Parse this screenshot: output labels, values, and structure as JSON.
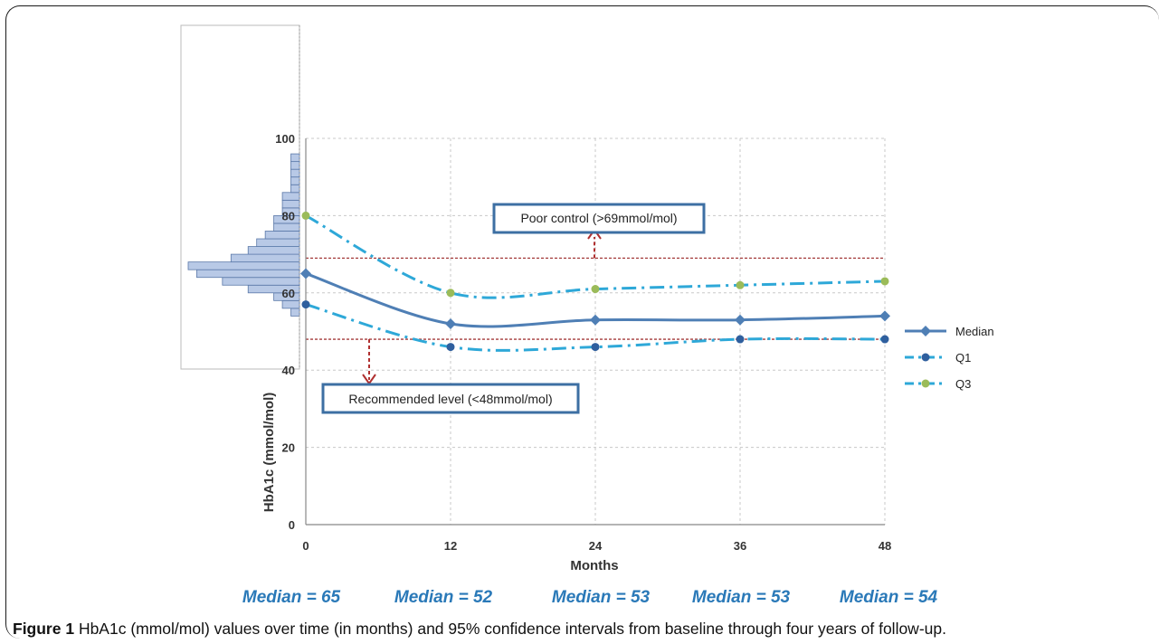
{
  "chart_data": {
    "type": "line",
    "xlabel": "Months",
    "ylabel": "HbA1c (mmol/mol)",
    "x": [
      0,
      12,
      24,
      36,
      48
    ],
    "xticks": [
      "0",
      "12",
      "24",
      "36",
      "48"
    ],
    "yticks": [
      "0",
      "20",
      "40",
      "60",
      "80",
      "100"
    ],
    "ylim": [
      0,
      100
    ],
    "xlim": [
      0,
      48
    ],
    "grid": true,
    "legend_position": "right",
    "series": [
      {
        "name": "Median",
        "values": [
          65,
          52,
          53,
          53,
          54
        ],
        "color": "#4f7fb5",
        "marker": "diamond",
        "style": "solid"
      },
      {
        "name": "Q1",
        "values": [
          57,
          46,
          46,
          48,
          48
        ],
        "color": "#2ea8d8",
        "marker_color": "#2f5f9e",
        "marker": "circle",
        "style": "dashdot"
      },
      {
        "name": "Q3",
        "values": [
          80,
          60,
          61,
          62,
          63
        ],
        "color": "#2ea8d8",
        "marker_color": "#9bbb59",
        "marker": "circle",
        "style": "dashdot"
      }
    ],
    "reference_lines": [
      {
        "value": 69,
        "label": "Poor control (>69mmol/mol)",
        "color": "#a33a3a"
      },
      {
        "value": 48,
        "label": "Recommended level (<48mmol/mol)",
        "color": "#a33a3a"
      }
    ],
    "histogram": {
      "orientation": "horizontal",
      "bin_width": 2,
      "bins": [
        {
          "y0": 54,
          "count": 1
        },
        {
          "y0": 56,
          "count": 2
        },
        {
          "y0": 58,
          "count": 3
        },
        {
          "y0": 60,
          "count": 6
        },
        {
          "y0": 62,
          "count": 9
        },
        {
          "y0": 64,
          "count": 12
        },
        {
          "y0": 66,
          "count": 13
        },
        {
          "y0": 68,
          "count": 8
        },
        {
          "y0": 70,
          "count": 6
        },
        {
          "y0": 72,
          "count": 5
        },
        {
          "y0": 74,
          "count": 4
        },
        {
          "y0": 76,
          "count": 3
        },
        {
          "y0": 78,
          "count": 3
        },
        {
          "y0": 80,
          "count": 2
        },
        {
          "y0": 82,
          "count": 2
        },
        {
          "y0": 84,
          "count": 2
        },
        {
          "y0": 86,
          "count": 1
        },
        {
          "y0": 88,
          "count": 1
        },
        {
          "y0": 90,
          "count": 1
        },
        {
          "y0": 92,
          "count": 1
        },
        {
          "y0": 94,
          "count": 1
        }
      ]
    },
    "annotations": {
      "medians": [
        "Median = 65",
        "Median = 52",
        "Median = 53",
        "Median = 53",
        "Median = 54"
      ]
    }
  },
  "caption": {
    "label": "Figure 1",
    "text": " HbA1c (mmol/mol) values over time (in months) and 95% confidence intervals from baseline through four years of follow-up."
  }
}
